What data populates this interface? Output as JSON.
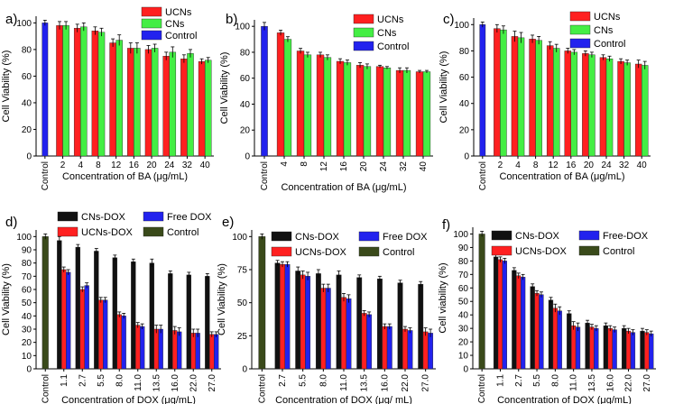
{
  "colors": {
    "UCNs": "#ff2020",
    "CNs": "#44ee44",
    "Control": "#2222ee",
    "CNs-DOX": "#111111",
    "UCNs-DOX": "#ff2020",
    "Free DOX": "#2222ee",
    "Control_dox": "#3a4a1a"
  },
  "chart_data": [
    {
      "id": "a",
      "panel_label": "a)",
      "type": "bar",
      "xlabel": "Concentration of BA (μg/mL)",
      "ylabel": "Cell Viability (%)",
      "ylim": [
        0,
        105
      ],
      "yticks": [
        0,
        20,
        40,
        60,
        80,
        100
      ],
      "categories": [
        "Control",
        "2",
        "4",
        "8",
        "12",
        "16",
        "20",
        "24",
        "32",
        "40"
      ],
      "legend_position": "top-right",
      "series": [
        {
          "name": "Control",
          "color_key": "Control",
          "values": [
            100,
            null,
            null,
            null,
            null,
            null,
            null,
            null,
            null,
            null
          ],
          "errors": [
            2,
            null,
            null,
            null,
            null,
            null,
            null,
            null,
            null,
            null
          ]
        },
        {
          "name": "UCNs",
          "color_key": "UCNs",
          "values": [
            null,
            98,
            96,
            94,
            85,
            81,
            80,
            75,
            73,
            71
          ],
          "errors": [
            null,
            3,
            3,
            3,
            3,
            4,
            3,
            3,
            3,
            2
          ]
        },
        {
          "name": "CNs",
          "color_key": "CNs",
          "values": [
            null,
            98,
            97,
            93,
            87,
            81,
            81,
            78,
            77,
            72
          ],
          "errors": [
            null,
            3,
            3,
            3,
            4,
            4,
            3,
            4,
            3,
            2
          ]
        }
      ],
      "legend": [
        "UCNs",
        "CNs",
        "Control"
      ]
    },
    {
      "id": "b",
      "panel_label": "b)",
      "type": "bar",
      "xlabel": "Concentration of BA (μg/mL)",
      "ylabel": "Cell Viability (%)",
      "ylim": [
        0,
        105
      ],
      "yticks": [
        0,
        20,
        40,
        60,
        80,
        100
      ],
      "categories": [
        "Control",
        "4",
        "8",
        "12",
        "16",
        "20",
        "24",
        "32",
        "40"
      ],
      "legend_position": "top-right",
      "series": [
        {
          "name": "Control",
          "color_key": "Control",
          "values": [
            100,
            null,
            null,
            null,
            null,
            null,
            null,
            null,
            null
          ],
          "errors": [
            3,
            null,
            null,
            null,
            null,
            null,
            null,
            null,
            null
          ]
        },
        {
          "name": "UCNs",
          "color_key": "UCNs",
          "values": [
            null,
            95,
            81,
            78,
            73,
            70,
            69,
            66,
            65
          ],
          "errors": [
            null,
            2,
            2,
            2,
            2,
            2,
            1,
            2,
            1
          ]
        },
        {
          "name": "CNs",
          "color_key": "CNs",
          "values": [
            null,
            90,
            78,
            76,
            72,
            69,
            68,
            66,
            65
          ],
          "errors": [
            null,
            2,
            2,
            2,
            2,
            2,
            1,
            2,
            1
          ]
        }
      ],
      "legend": [
        "UCNs",
        "CNs",
        "Control"
      ]
    },
    {
      "id": "c",
      "panel_label": "c)",
      "type": "bar",
      "xlabel": "Concentration of BA (μg/mL)",
      "ylabel": "Cell Viability (%)",
      "ylim": [
        0,
        105
      ],
      "yticks": [
        0,
        20,
        40,
        60,
        80,
        100
      ],
      "categories": [
        "Control",
        "2",
        "4",
        "8",
        "12",
        "16",
        "20",
        "24",
        "32",
        "40"
      ],
      "legend_position": "top-right",
      "series": [
        {
          "name": "Control",
          "color_key": "Control",
          "values": [
            100,
            null,
            null,
            null,
            null,
            null,
            null,
            null,
            null,
            null
          ],
          "errors": [
            2,
            null,
            null,
            null,
            null,
            null,
            null,
            null,
            null,
            null
          ]
        },
        {
          "name": "UCNs",
          "color_key": "UCNs",
          "values": [
            null,
            97,
            91,
            89,
            84,
            80,
            78,
            75,
            72,
            70
          ],
          "errors": [
            null,
            3,
            4,
            3,
            3,
            2,
            2,
            2,
            2,
            3
          ]
        },
        {
          "name": "CNs",
          "color_key": "CNs",
          "values": [
            null,
            96,
            90,
            88,
            82,
            79,
            77,
            74,
            71,
            69
          ],
          "errors": [
            null,
            3,
            4,
            3,
            3,
            2,
            2,
            2,
            2,
            3
          ]
        }
      ],
      "legend": [
        "UCNs",
        "CNs",
        "Control"
      ]
    },
    {
      "id": "d",
      "panel_label": "d)",
      "type": "bar",
      "xlabel": "Concentration of DOX (μg/mL)",
      "ylabel": "Cell Viability (%)",
      "ylim": [
        0,
        105
      ],
      "yticks": [
        0,
        10,
        20,
        30,
        40,
        50,
        60,
        70,
        80,
        90,
        100
      ],
      "categories": [
        "Control",
        "1.1",
        "2.7",
        "5.5",
        "8.0",
        "11.0",
        "13.5",
        "16.0",
        "22.0",
        "27.0"
      ],
      "legend_position": "top",
      "series": [
        {
          "name": "Control",
          "color_key": "Control_dox",
          "values": [
            100,
            null,
            null,
            null,
            null,
            null,
            null,
            null,
            null,
            null
          ],
          "errors": [
            2,
            null,
            null,
            null,
            null,
            null,
            null,
            null,
            null,
            null
          ]
        },
        {
          "name": "CNs-DOX",
          "color_key": "CNs-DOX",
          "values": [
            null,
            97,
            92,
            89,
            84,
            81,
            80,
            72,
            71,
            70
          ],
          "errors": [
            null,
            3,
            2,
            2,
            2,
            2,
            3,
            2,
            2,
            2
          ]
        },
        {
          "name": "UCNs-DOX",
          "color_key": "UCNs-DOX",
          "values": [
            null,
            75,
            60,
            52,
            41,
            33,
            30,
            29,
            27,
            26
          ],
          "errors": [
            null,
            2,
            2,
            2,
            2,
            2,
            3,
            3,
            3,
            2
          ]
        },
        {
          "name": "Free DOX",
          "color_key": "Free DOX",
          "values": [
            null,
            73,
            63,
            52,
            40,
            32,
            30,
            28,
            27,
            26
          ],
          "errors": [
            null,
            2,
            2,
            2,
            2,
            2,
            3,
            3,
            3,
            2
          ]
        }
      ],
      "legend": [
        "CNs-DOX",
        "Free DOX",
        "UCNs-DOX",
        "Control"
      ]
    },
    {
      "id": "e",
      "panel_label": "e)",
      "type": "bar",
      "xlabel": "Concentration of DOX (μg/ mL)",
      "ylabel": "Cell Viability (%)",
      "ylim": [
        0,
        105
      ],
      "yticks": [
        0,
        25,
        50,
        75,
        100
      ],
      "categories": [
        "Control",
        "2.7",
        "5.5",
        "8.0",
        "11.0",
        "13.5",
        "16.0",
        "22.0",
        "27.0"
      ],
      "legend_position": "top",
      "series": [
        {
          "name": "Control",
          "color_key": "Control_dox",
          "values": [
            100,
            null,
            null,
            null,
            null,
            null,
            null,
            null,
            null
          ],
          "errors": [
            2,
            null,
            null,
            null,
            null,
            null,
            null,
            null,
            null
          ]
        },
        {
          "name": "CNs-DOX",
          "color_key": "CNs-DOX",
          "values": [
            null,
            80,
            74,
            72,
            71,
            69,
            68,
            65,
            64
          ],
          "errors": [
            null,
            2,
            3,
            3,
            3,
            2,
            2,
            2,
            2
          ]
        },
        {
          "name": "UCNs-DOX",
          "color_key": "UCNs-DOX",
          "values": [
            null,
            79,
            71,
            61,
            54,
            42,
            32,
            30,
            28
          ],
          "errors": [
            null,
            2,
            3,
            3,
            3,
            2,
            2,
            2,
            3
          ]
        },
        {
          "name": "Free DOX",
          "color_key": "Free DOX",
          "values": [
            null,
            79,
            70,
            61,
            53,
            41,
            32,
            29,
            27
          ],
          "errors": [
            null,
            2,
            3,
            3,
            3,
            2,
            2,
            2,
            3
          ]
        }
      ],
      "legend": [
        "CNs-DOX",
        "Free DOX",
        "UCNs-DOX",
        "Control"
      ]
    },
    {
      "id": "f",
      "panel_label": "f)",
      "type": "bar",
      "xlabel": "Concentration of DOX (μg/mL)",
      "ylabel": "Cell viability (%)",
      "ylim": [
        0,
        105
      ],
      "yticks": [
        0,
        10,
        20,
        30,
        40,
        50,
        60,
        70,
        80,
        90,
        100
      ],
      "categories": [
        "Control",
        "1.1",
        "2.7",
        "5.5",
        "8.0",
        "11.0",
        "13.5",
        "16.0",
        "22.0",
        "27.0"
      ],
      "legend_position": "top",
      "series": [
        {
          "name": "Control",
          "color_key": "Control_dox",
          "values": [
            100,
            null,
            null,
            null,
            null,
            null,
            null,
            null,
            null,
            null
          ],
          "errors": [
            2,
            null,
            null,
            null,
            null,
            null,
            null,
            null,
            null,
            null
          ]
        },
        {
          "name": "CNs-DOX",
          "color_key": "CNs-DOX",
          "values": [
            null,
            83,
            73,
            61,
            51,
            41,
            34,
            32,
            30,
            28
          ],
          "errors": [
            null,
            2,
            2,
            2,
            2,
            2,
            2,
            2,
            2,
            2
          ]
        },
        {
          "name": "UCNs-DOX",
          "color_key": "UCNs-DOX",
          "values": [
            null,
            81,
            69,
            56,
            45,
            32,
            31,
            30,
            28,
            27
          ],
          "errors": [
            null,
            2,
            2,
            2,
            3,
            3,
            2,
            2,
            2,
            2
          ]
        },
        {
          "name": "Free-DOX",
          "color_key": "Free DOX",
          "values": [
            null,
            80,
            68,
            55,
            43,
            31,
            30,
            29,
            27,
            26
          ],
          "errors": [
            null,
            2,
            2,
            2,
            3,
            3,
            2,
            2,
            2,
            2
          ]
        }
      ],
      "legend": [
        "CNs-DOX",
        "Free-DOX",
        "UCNs-DOX",
        "Control"
      ]
    }
  ]
}
